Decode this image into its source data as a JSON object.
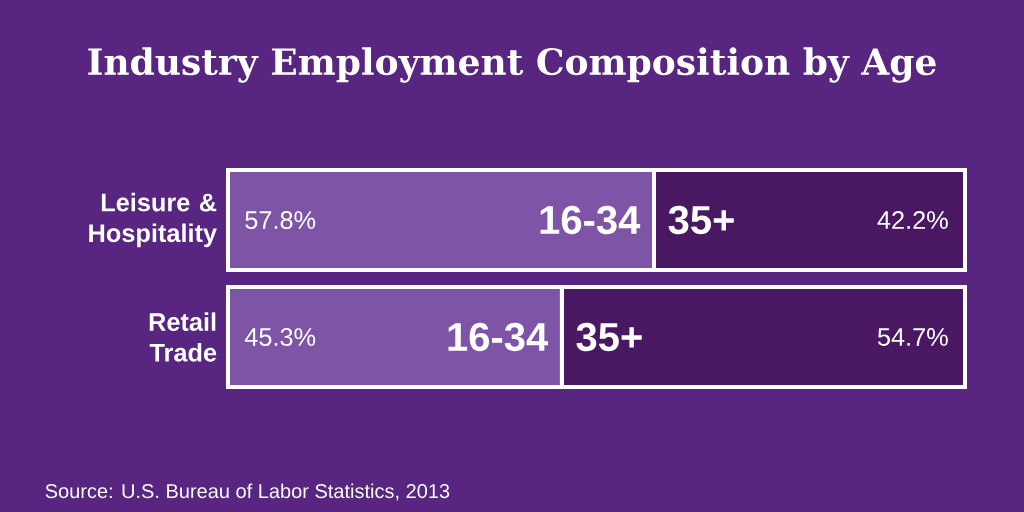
{
  "chart_data": {
    "type": "bar",
    "title": "Industry Employment Composition by Age",
    "categories": [
      "Leisure & Hospitality",
      "Retail Trade"
    ],
    "orientation": "horizontal",
    "stacked": true,
    "legend": false,
    "series": [
      {
        "name": "16-34",
        "color": "#7e55a6",
        "values": [
          57.8,
          45.3
        ],
        "value_labels": [
          "57.8%",
          "45.3%"
        ]
      },
      {
        "name": "35+",
        "color": "#4a1763",
        "values": [
          42.2,
          54.7
        ],
        "value_labels": [
          "42.2%",
          "54.7%"
        ]
      }
    ],
    "annotations": [
      "Source: U.S. Bureau of Labor Statistics, 2013"
    ]
  }
}
